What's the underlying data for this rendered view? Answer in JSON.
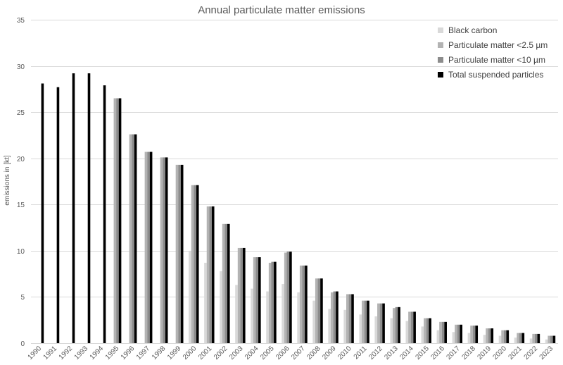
{
  "chart_data": {
    "type": "bar",
    "title": "Annual particulate matter emissions",
    "xlabel": "",
    "ylabel": "emissions in [kt]",
    "ylim": [
      0,
      35
    ],
    "yticks": [
      0,
      5,
      10,
      15,
      20,
      25,
      30,
      35
    ],
    "grid": true,
    "legend_position": "top-right",
    "categories": [
      "1990",
      "1991",
      "1992",
      "1993",
      "1994",
      "1995",
      "1996",
      "1997",
      "1998",
      "1999",
      "2000",
      "2001",
      "2002",
      "2003",
      "2004",
      "2005",
      "2006",
      "2007",
      "2008",
      "2009",
      "2010",
      "2011",
      "2012",
      "2013",
      "2014",
      "2015",
      "2016",
      "2017",
      "2018",
      "2019",
      "2020",
      "2021",
      "2022",
      "2023"
    ],
    "series": [
      {
        "name": "Black carbon",
        "color": "#d9d9d9",
        "values": [
          null,
          null,
          null,
          null,
          null,
          null,
          null,
          null,
          null,
          null,
          10.0,
          8.7,
          7.8,
          6.3,
          5.9,
          5.6,
          6.4,
          5.5,
          4.6,
          3.7,
          3.6,
          3.1,
          2.9,
          2.7,
          2.4,
          1.8,
          1.4,
          1.2,
          1.1,
          0.9,
          0.8,
          0.6,
          0.5,
          0.4
        ]
      },
      {
        "name": "Particulate matter <2.5 µm",
        "color": "#b3b3b3",
        "values": [
          null,
          null,
          null,
          null,
          null,
          26.5,
          22.6,
          20.7,
          20.1,
          19.3,
          17.1,
          14.8,
          12.9,
          10.3,
          9.3,
          8.7,
          9.8,
          8.4,
          7.0,
          5.5,
          5.3,
          4.6,
          4.3,
          3.8,
          3.4,
          2.7,
          2.3,
          2.0,
          1.9,
          1.6,
          1.4,
          1.1,
          1.0,
          0.8
        ]
      },
      {
        "name": "Particulate matter <10 µm",
        "color": "#8c8c8c",
        "values": [
          null,
          null,
          null,
          null,
          null,
          26.5,
          22.6,
          20.7,
          20.1,
          19.3,
          17.1,
          14.8,
          12.9,
          10.3,
          9.3,
          8.8,
          9.9,
          8.4,
          7.0,
          5.6,
          5.3,
          4.6,
          4.3,
          3.9,
          3.4,
          2.7,
          2.3,
          2.0,
          1.9,
          1.6,
          1.4,
          1.1,
          1.0,
          0.8
        ]
      },
      {
        "name": "Total suspended particles",
        "color": "#000000",
        "values": [
          28.1,
          27.7,
          29.2,
          29.2,
          27.9,
          26.5,
          22.6,
          20.7,
          20.1,
          19.3,
          17.1,
          14.8,
          12.9,
          10.3,
          9.3,
          8.8,
          9.9,
          8.4,
          7.0,
          5.6,
          5.3,
          4.6,
          4.3,
          3.9,
          3.4,
          2.7,
          2.3,
          2.0,
          1.9,
          1.6,
          1.4,
          1.1,
          1.0,
          0.8
        ]
      }
    ]
  }
}
